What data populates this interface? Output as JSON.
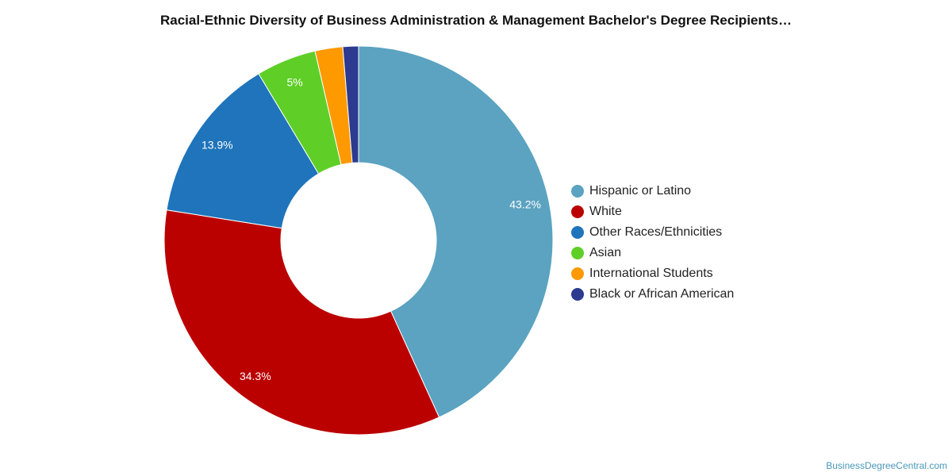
{
  "page": {
    "title": "Racial-Ethnic Diversity of Business Administration & Management Bachelor's Degree Recipients…",
    "credit": "BusinessDegreeCentral.com"
  },
  "chart_data": {
    "type": "pie",
    "variant": "donut",
    "title": "Racial-Ethnic Diversity of Business Administration & Management Bachelor's Degree Recipients…",
    "series": [
      {
        "name": "Hispanic or Latino",
        "value": 43.2,
        "label": "43.2%",
        "color": "#5ba3c0"
      },
      {
        "name": "White",
        "value": 34.3,
        "label": "34.3%",
        "color": "#bb0000"
      },
      {
        "name": "Other Races/Ethnicities",
        "value": 13.9,
        "label": "13.9%",
        "color": "#1f74bb"
      },
      {
        "name": "Asian",
        "value": 5.0,
        "label": "5%",
        "color": "#5fcf27"
      },
      {
        "name": "International Students",
        "value": 2.3,
        "label": "",
        "color": "#ff9900"
      },
      {
        "name": "Black or African American",
        "value": 1.3,
        "label": "",
        "color": "#2c3a8f"
      }
    ],
    "legend": "right"
  }
}
